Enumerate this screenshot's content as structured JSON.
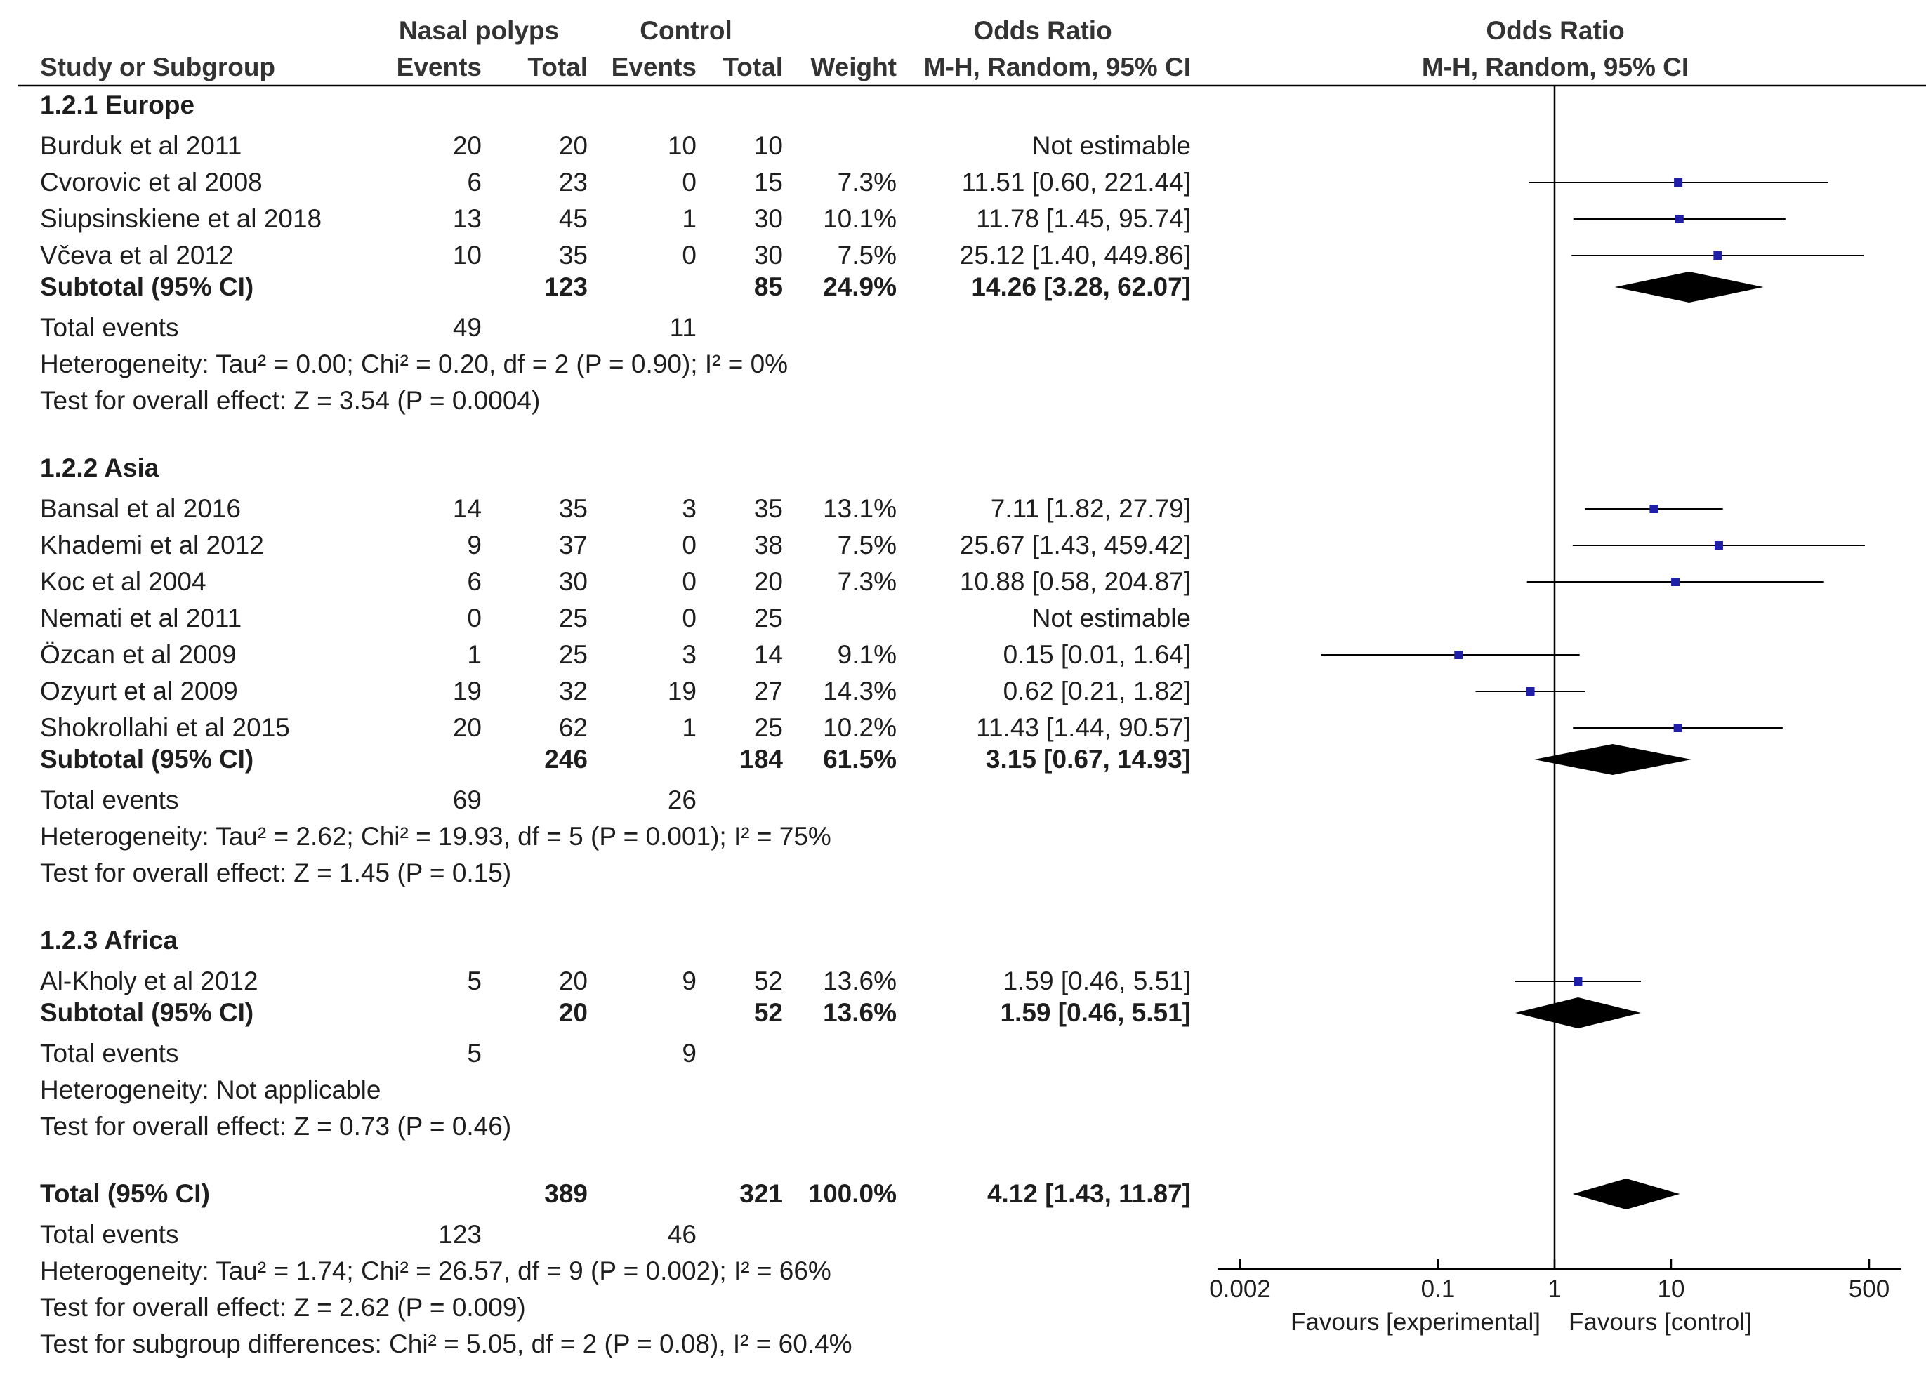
{
  "headers": {
    "group1": "Nasal polyps",
    "group2": "Control",
    "or_header": "Odds Ratio",
    "or_sub": "M-H, Random, 95% CI",
    "plot_header": "Odds Ratio",
    "plot_sub": "M-H, Random, 95% CI",
    "study": "Study or Subgroup",
    "events1": "Events",
    "total1": "Total",
    "events2": "Events",
    "total2": "Total",
    "weight": "Weight"
  },
  "chart_data": {
    "type": "forest",
    "xscale": "log",
    "xlim": [
      0.002,
      500
    ],
    "ticks": [
      0.002,
      0.1,
      1,
      10,
      500
    ],
    "tick_labels": [
      "0.002",
      "0.1",
      "1",
      "10",
      "500"
    ],
    "favours_left": "Favours [experimental]",
    "favours_right": "Favours [control]",
    "subgroups": [
      {
        "title": "1.2.1 Europe",
        "studies": [
          {
            "name": "Burduk et al 2011",
            "e1": "20",
            "t1": "20",
            "e2": "10",
            "t2": "10",
            "weight": "",
            "ci": "Not estimable",
            "or": null,
            "lo": null,
            "hi": null
          },
          {
            "name": "Cvorovic et al 2008",
            "e1": "6",
            "t1": "23",
            "e2": "0",
            "t2": "15",
            "weight": "7.3%",
            "ci": "11.51 [0.60, 221.44]",
            "or": 11.51,
            "lo": 0.6,
            "hi": 221.44
          },
          {
            "name": "Siupsinskiene et al 2018",
            "e1": "13",
            "t1": "45",
            "e2": "1",
            "t2": "30",
            "weight": "10.1%",
            "ci": "11.78 [1.45, 95.74]",
            "or": 11.78,
            "lo": 1.45,
            "hi": 95.74
          },
          {
            "name": "Včeva et al 2012",
            "e1": "10",
            "t1": "35",
            "e2": "0",
            "t2": "30",
            "weight": "7.5%",
            "ci": "25.12 [1.40, 449.86]",
            "or": 25.12,
            "lo": 1.4,
            "hi": 449.86
          }
        ],
        "subtotal": {
          "label": "Subtotal (95% CI)",
          "t1": "123",
          "t2": "85",
          "weight": "24.9%",
          "ci": "14.26 [3.28, 62.07]",
          "or": 14.26,
          "lo": 3.28,
          "hi": 62.07
        },
        "total_events": {
          "label": "Total events",
          "e1": "49",
          "e2": "11"
        },
        "heterogeneity": "Heterogeneity: Tau² = 0.00; Chi² = 0.20, df = 2 (P = 0.90); I² = 0%",
        "overall": "Test for overall effect: Z = 3.54 (P = 0.0004)"
      },
      {
        "title": "1.2.2 Asia",
        "studies": [
          {
            "name": "Bansal et al 2016",
            "e1": "14",
            "t1": "35",
            "e2": "3",
            "t2": "35",
            "weight": "13.1%",
            "ci": "7.11 [1.82, 27.79]",
            "or": 7.11,
            "lo": 1.82,
            "hi": 27.79
          },
          {
            "name": "Khademi et al 2012",
            "e1": "9",
            "t1": "37",
            "e2": "0",
            "t2": "38",
            "weight": "7.5%",
            "ci": "25.67 [1.43, 459.42]",
            "or": 25.67,
            "lo": 1.43,
            "hi": 459.42
          },
          {
            "name": "Koc et al 2004",
            "e1": "6",
            "t1": "30",
            "e2": "0",
            "t2": "20",
            "weight": "7.3%",
            "ci": "10.88 [0.58, 204.87]",
            "or": 10.88,
            "lo": 0.58,
            "hi": 204.87
          },
          {
            "name": "Nemati et al 2011",
            "e1": "0",
            "t1": "25",
            "e2": "0",
            "t2": "25",
            "weight": "",
            "ci": "Not estimable",
            "or": null,
            "lo": null,
            "hi": null
          },
          {
            "name": "Özcan et al 2009",
            "e1": "1",
            "t1": "25",
            "e2": "3",
            "t2": "14",
            "weight": "9.1%",
            "ci": "0.15 [0.01, 1.64]",
            "or": 0.15,
            "lo": 0.01,
            "hi": 1.64
          },
          {
            "name": "Ozyurt et al 2009",
            "e1": "19",
            "t1": "32",
            "e2": "19",
            "t2": "27",
            "weight": "14.3%",
            "ci": "0.62 [0.21, 1.82]",
            "or": 0.62,
            "lo": 0.21,
            "hi": 1.82
          },
          {
            "name": "Shokrollahi et al 2015",
            "e1": "20",
            "t1": "62",
            "e2": "1",
            "t2": "25",
            "weight": "10.2%",
            "ci": "11.43 [1.44, 90.57]",
            "or": 11.43,
            "lo": 1.44,
            "hi": 90.57
          }
        ],
        "subtotal": {
          "label": "Subtotal (95% CI)",
          "t1": "246",
          "t2": "184",
          "weight": "61.5%",
          "ci": "3.15 [0.67, 14.93]",
          "or": 3.15,
          "lo": 0.67,
          "hi": 14.93
        },
        "total_events": {
          "label": "Total events",
          "e1": "69",
          "e2": "26"
        },
        "heterogeneity": "Heterogeneity: Tau² = 2.62; Chi² = 19.93, df = 5 (P = 0.001); I² = 75%",
        "overall": "Test for overall effect: Z = 1.45 (P = 0.15)"
      },
      {
        "title": "1.2.3 Africa",
        "studies": [
          {
            "name": "Al-Kholy et al 2012",
            "e1": "5",
            "t1": "20",
            "e2": "9",
            "t2": "52",
            "weight": "13.6%",
            "ci": "1.59 [0.46, 5.51]",
            "or": 1.59,
            "lo": 0.46,
            "hi": 5.51
          }
        ],
        "subtotal": {
          "label": "Subtotal (95% CI)",
          "t1": "20",
          "t2": "52",
          "weight": "13.6%",
          "ci": "1.59 [0.46, 5.51]",
          "or": 1.59,
          "lo": 0.46,
          "hi": 5.51
        },
        "total_events": {
          "label": "Total events",
          "e1": "5",
          "e2": "9"
        },
        "heterogeneity": "Heterogeneity: Not applicable",
        "overall": "Test for overall effect: Z = 0.73 (P = 0.46)"
      }
    ],
    "total": {
      "label": "Total (95% CI)",
      "t1": "389",
      "t2": "321",
      "weight": "100.0%",
      "ci": "4.12 [1.43, 11.87]",
      "or": 4.12,
      "lo": 1.43,
      "hi": 11.87
    },
    "total_events": {
      "label": "Total events",
      "e1": "123",
      "e2": "46"
    },
    "heterogeneity": "Heterogeneity: Tau² = 1.74; Chi² = 26.57, df = 9 (P = 0.002); I² = 66%",
    "overall": "Test for overall effect: Z = 2.62 (P = 0.009)",
    "subgroup_diff": "Test for subgroup differences: Chi² = 5.05, df = 2 (P = 0.08), I² = 60.4%",
    "colors": {
      "point": "#1f1fa8",
      "diamond": "#000000",
      "line": "#000000"
    }
  }
}
